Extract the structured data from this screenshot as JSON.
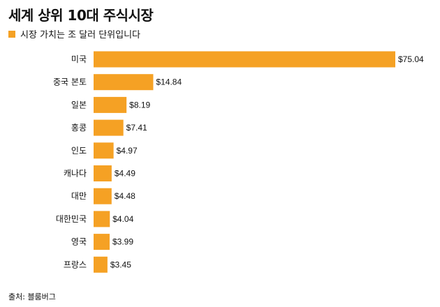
{
  "colors": {
    "bar": "#F5A124",
    "text": "#111111"
  },
  "chart_data": {
    "type": "bar",
    "orientation": "horizontal",
    "title": "세계 상위 10대 주식시장",
    "legend": "시장 가치는 조 달러 단위입니다",
    "categories": [
      "미국",
      "중국 본토",
      "일본",
      "홍콩",
      "인도",
      "캐나다",
      "대만",
      "대한민국",
      "영국",
      "프랑스"
    ],
    "values": [
      75.04,
      14.84,
      8.19,
      7.41,
      4.97,
      4.49,
      4.48,
      4.04,
      3.99,
      3.45
    ],
    "value_labels": [
      "$75.04",
      "$14.84",
      "$8.19",
      "$7.41",
      "$4.97",
      "$4.49",
      "$4.48",
      "$4.04",
      "$3.99",
      "$3.45"
    ],
    "xlim": [
      0,
      75.04
    ],
    "grid": false,
    "source": "출처: 블룸버그"
  }
}
